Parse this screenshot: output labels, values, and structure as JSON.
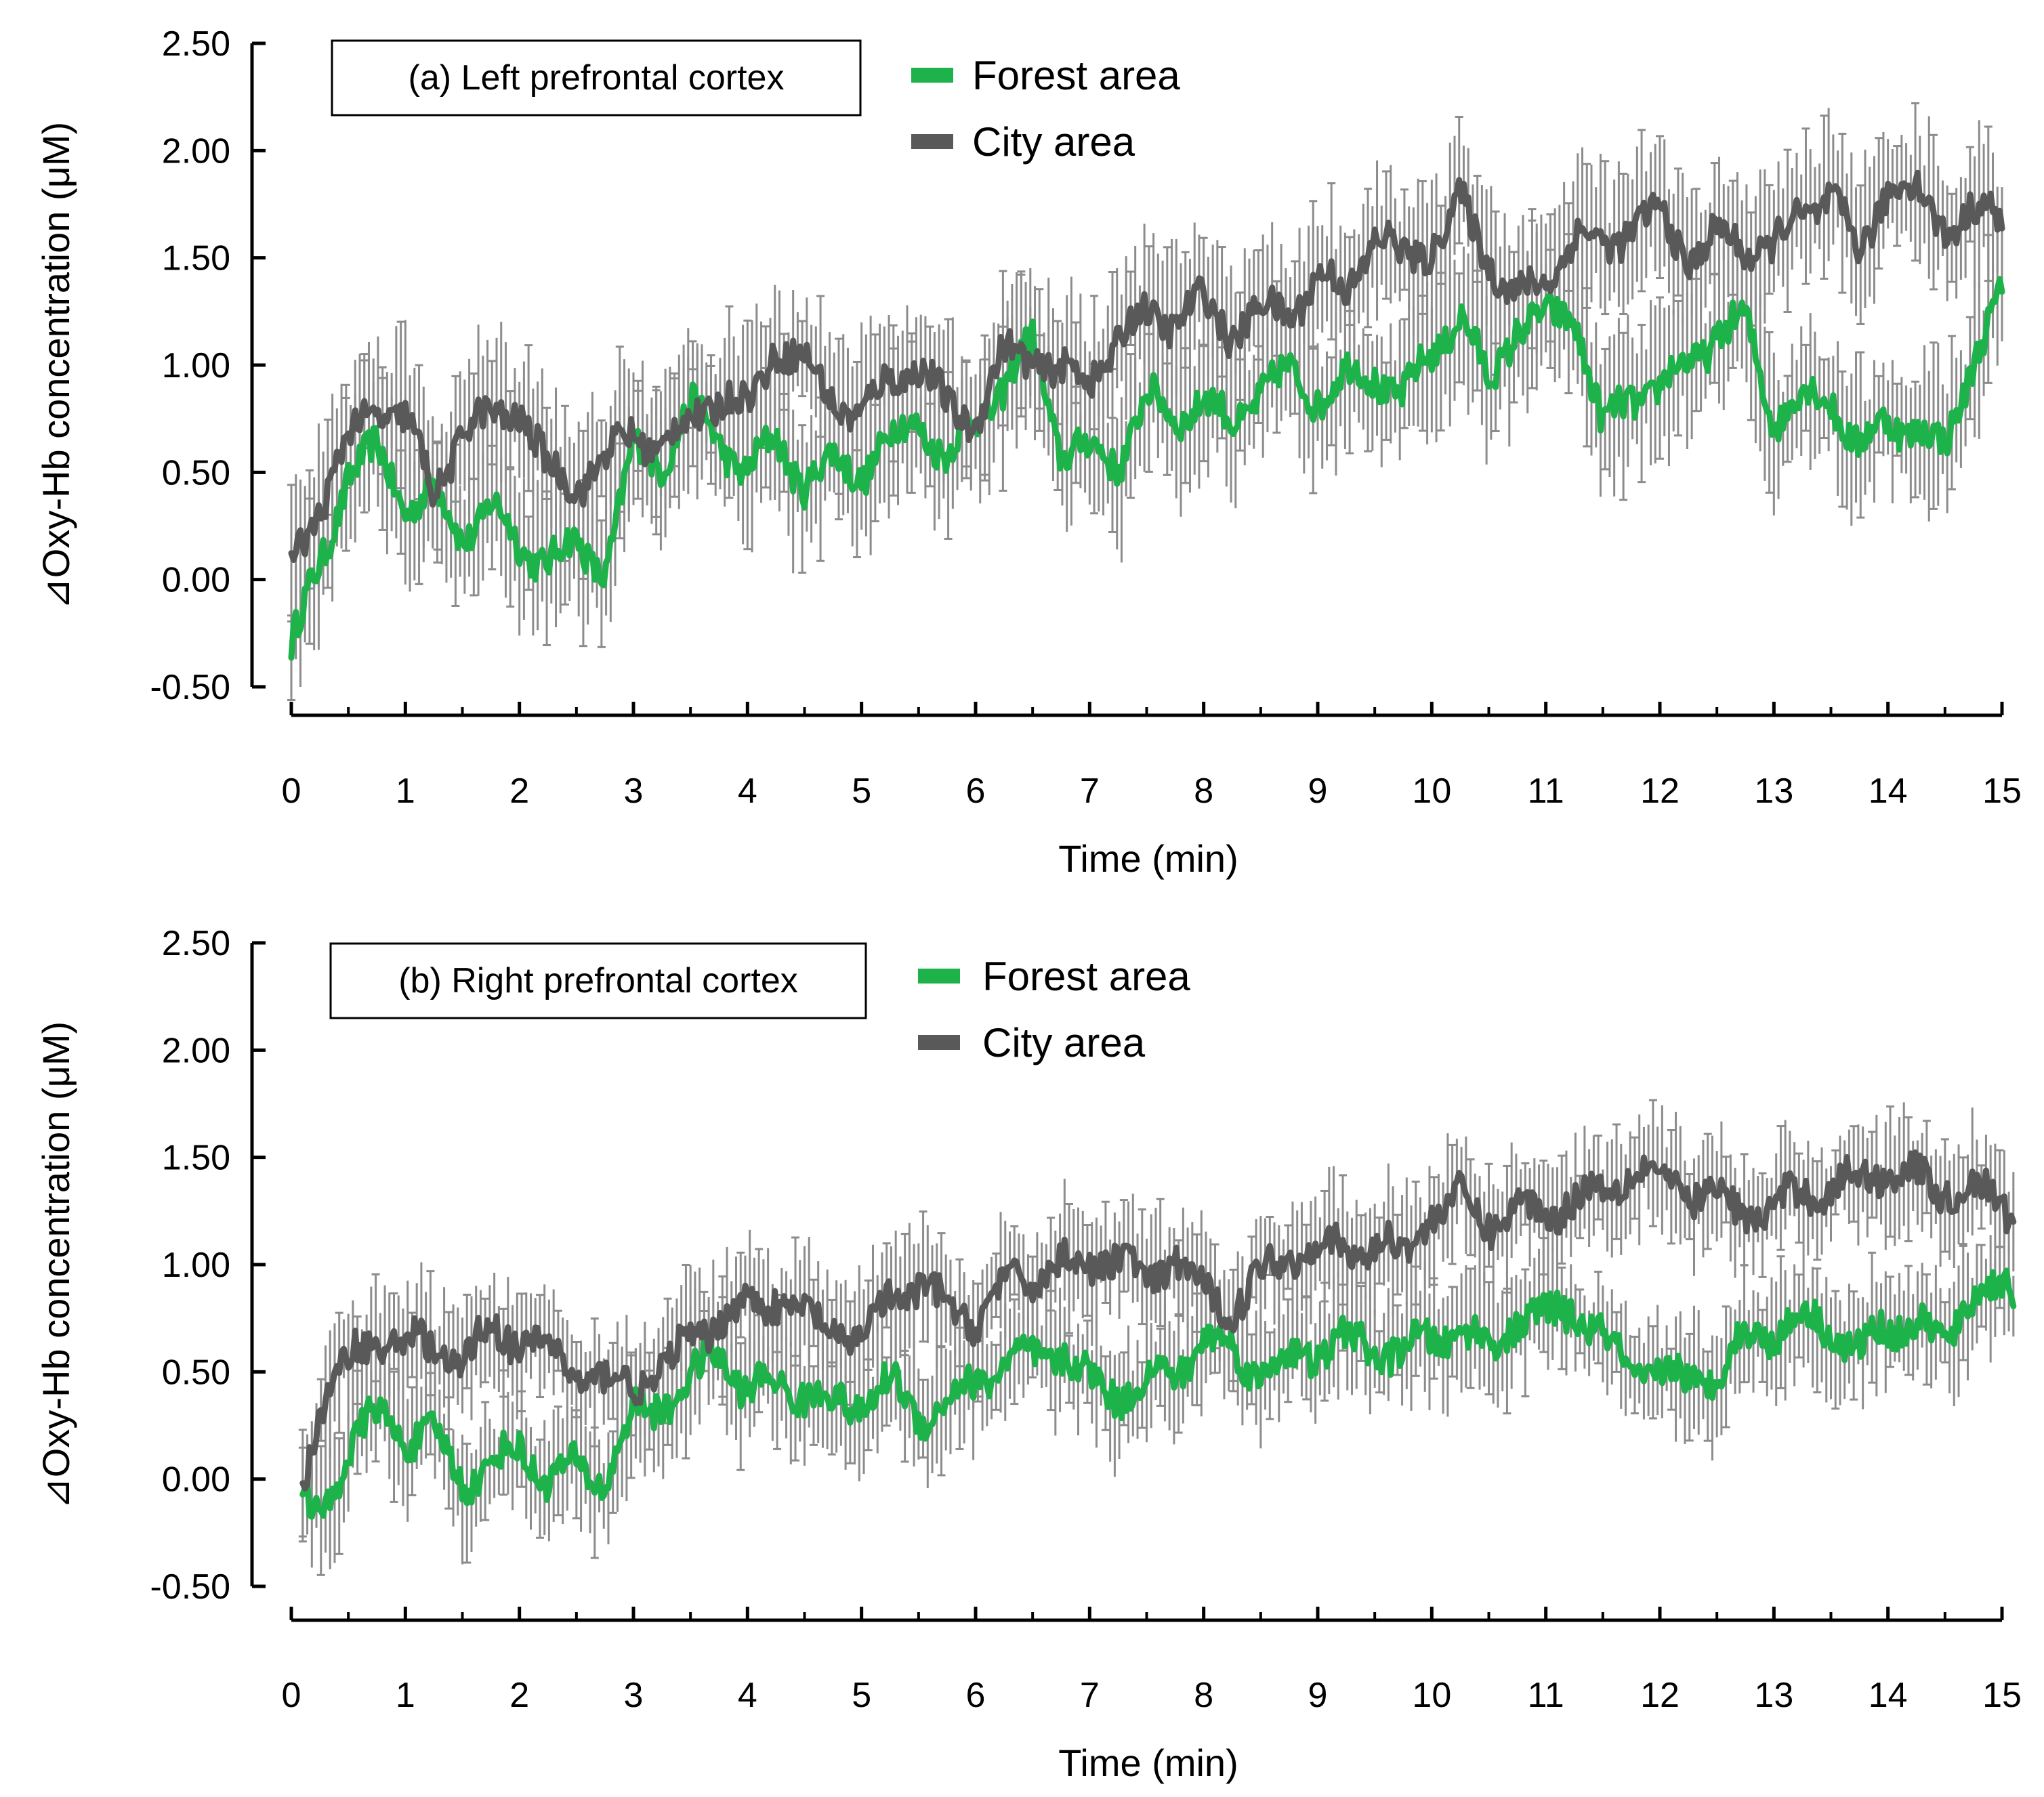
{
  "chart_data": [
    {
      "type": "line",
      "panel_title": "(a) Left prefrontal cortex",
      "xlabel": "Time (min)",
      "ylabel": "⊿Oxy-Hb concentration (μM)",
      "xlim": [
        0,
        15
      ],
      "ylim": [
        -0.5,
        2.5
      ],
      "xticks": [
        "0",
        "1",
        "2",
        "3",
        "4",
        "5",
        "6",
        "7",
        "8",
        "9",
        "10",
        "11",
        "12",
        "13",
        "14",
        "15"
      ],
      "yticks": [
        "-0.50",
        "0.00",
        "0.50",
        "1.00",
        "1.50",
        "2.00",
        "2.50"
      ],
      "legend": [
        "Forest area",
        "City area"
      ],
      "error_bars": "gray, ±SE (approx. 0.3)",
      "series": [
        {
          "name": "Forest area",
          "color": "#1db34a",
          "x": [
            0,
            0.25,
            0.5,
            0.75,
            1,
            1.25,
            1.5,
            1.75,
            2,
            2.25,
            2.5,
            2.75,
            3,
            3.25,
            3.5,
            3.75,
            4,
            4.25,
            4.5,
            4.75,
            5,
            5.25,
            5.5,
            5.75,
            6,
            6.25,
            6.5,
            6.75,
            7,
            7.25,
            7.5,
            7.75,
            8,
            8.25,
            8.5,
            8.75,
            9,
            9.25,
            9.5,
            9.75,
            10,
            10.25,
            10.5,
            10.75,
            11,
            11.25,
            11.5,
            11.75,
            12,
            12.25,
            12.5,
            12.75,
            13,
            13.25,
            13.5,
            13.75,
            14,
            14.25,
            14.5,
            14.75,
            15
          ],
          "values": [
            -0.3,
            0.05,
            0.5,
            0.6,
            0.35,
            0.4,
            0.2,
            0.35,
            0.15,
            0.1,
            0.15,
            0.05,
            0.6,
            0.55,
            0.8,
            0.65,
            0.5,
            0.65,
            0.45,
            0.55,
            0.5,
            0.65,
            0.75,
            0.55,
            0.75,
            0.9,
            1.1,
            0.6,
            0.6,
            0.55,
            0.85,
            0.75,
            0.85,
            0.7,
            0.9,
            0.95,
            0.85,
            0.95,
            0.95,
            0.85,
            1.05,
            1.25,
            0.9,
            1.2,
            1.2,
            1.25,
            0.7,
            0.85,
            0.9,
            1.0,
            1.15,
            1.2,
            0.75,
            0.85,
            0.85,
            0.6,
            0.75,
            0.7,
            0.6,
            1.05,
            1.3
          ]
        },
        {
          "name": "City area",
          "color": "#595959",
          "x": [
            0,
            0.25,
            0.5,
            0.75,
            1,
            1.25,
            1.5,
            1.75,
            2,
            2.25,
            2.5,
            2.75,
            3,
            3.25,
            3.5,
            3.75,
            4,
            4.25,
            4.5,
            4.75,
            5,
            5.25,
            5.5,
            5.75,
            6,
            6.25,
            6.5,
            6.75,
            7,
            7.25,
            7.5,
            7.75,
            8,
            8.25,
            8.5,
            8.75,
            9,
            9.25,
            9.5,
            9.75,
            10,
            10.25,
            10.5,
            10.75,
            11,
            11.25,
            11.5,
            11.75,
            12,
            12.25,
            12.5,
            12.75,
            13,
            13.25,
            13.5,
            13.75,
            14,
            14.25,
            14.5,
            14.75,
            15
          ],
          "values": [
            0.05,
            0.35,
            0.65,
            0.8,
            0.75,
            0.4,
            0.7,
            0.75,
            0.8,
            0.5,
            0.45,
            0.55,
            0.7,
            0.6,
            0.75,
            0.85,
            0.8,
            1.1,
            1.0,
            0.85,
            0.75,
            0.95,
            1.0,
            0.8,
            0.75,
            1.05,
            1.05,
            0.95,
            0.95,
            1.1,
            1.25,
            1.2,
            1.3,
            1.15,
            1.25,
            1.25,
            1.4,
            1.35,
            1.6,
            1.5,
            1.55,
            1.75,
            1.5,
            1.3,
            1.4,
            1.6,
            1.55,
            1.65,
            1.7,
            1.5,
            1.6,
            1.55,
            1.55,
            1.7,
            1.8,
            1.5,
            1.85,
            1.8,
            1.65,
            1.7,
            1.7
          ]
        }
      ]
    },
    {
      "type": "line",
      "panel_title": "(b) Right prefrontal cortex",
      "xlabel": "Time (min)",
      "ylabel": "⊿Oxy-Hb concentration (μM)",
      "xlim": [
        0,
        15
      ],
      "ylim": [
        -0.5,
        2.5
      ],
      "xticks": [
        "0",
        "1",
        "2",
        "3",
        "4",
        "5",
        "6",
        "7",
        "8",
        "9",
        "10",
        "11",
        "12",
        "13",
        "14",
        "15"
      ],
      "yticks": [
        "-0.50",
        "0.00",
        "0.50",
        "1.00",
        "1.50",
        "2.00",
        "2.50"
      ],
      "legend": [
        "Forest area",
        "City area"
      ],
      "error_bars": "gray, ±SE (approx. 0.25)",
      "series": [
        {
          "name": "Forest area",
          "color": "#1db34a",
          "x": [
            0.1,
            0.25,
            0.5,
            0.75,
            1,
            1.25,
            1.5,
            1.75,
            2,
            2.25,
            2.5,
            2.75,
            3,
            3.25,
            3.5,
            3.75,
            4,
            4.25,
            4.5,
            4.75,
            5,
            5.25,
            5.5,
            5.75,
            6,
            6.25,
            6.5,
            6.75,
            7,
            7.25,
            7.5,
            7.75,
            8,
            8.25,
            8.5,
            8.75,
            9,
            9.25,
            9.5,
            9.75,
            10,
            10.25,
            10.5,
            10.75,
            11,
            11.25,
            11.5,
            11.75,
            12,
            12.25,
            12.5,
            12.75,
            13,
            13.25,
            13.5,
            13.75,
            14,
            14.25,
            14.5,
            14.75,
            15.1
          ],
          "values": [
            -0.1,
            -0.2,
            0.15,
            0.3,
            0.2,
            0.2,
            0.0,
            0.05,
            0.15,
            0.0,
            0.05,
            0.0,
            0.3,
            0.35,
            0.45,
            0.6,
            0.4,
            0.45,
            0.4,
            0.35,
            0.35,
            0.45,
            0.3,
            0.35,
            0.45,
            0.55,
            0.55,
            0.6,
            0.45,
            0.4,
            0.45,
            0.5,
            0.65,
            0.6,
            0.5,
            0.55,
            0.6,
            0.65,
            0.6,
            0.6,
            0.65,
            0.7,
            0.6,
            0.75,
            0.75,
            0.8,
            0.65,
            0.5,
            0.5,
            0.45,
            0.5,
            0.65,
            0.7,
            0.75,
            0.7,
            0.6,
            0.7,
            0.75,
            0.6,
            0.9,
            0.85
          ]
        },
        {
          "name": "City area",
          "color": "#595959",
          "x": [
            0.1,
            0.25,
            0.5,
            0.75,
            1,
            1.25,
            1.5,
            1.75,
            2,
            2.25,
            2.5,
            2.75,
            3,
            3.25,
            3.5,
            3.75,
            4,
            4.25,
            4.5,
            4.75,
            5,
            5.25,
            5.5,
            5.75,
            6,
            6.25,
            6.5,
            6.75,
            7,
            7.25,
            7.5,
            7.75,
            8,
            8.25,
            8.5,
            8.75,
            9,
            9.25,
            9.5,
            9.75,
            10,
            10.25,
            10.5,
            10.75,
            11,
            11.25,
            11.5,
            11.75,
            12,
            12.25,
            12.5,
            12.75,
            13,
            13.25,
            13.5,
            13.75,
            14,
            14.25,
            14.5,
            14.75,
            15.1
          ],
          "values": [
            -0.05,
            0.35,
            0.55,
            0.65,
            0.65,
            0.6,
            0.55,
            0.7,
            0.65,
            0.6,
            0.5,
            0.45,
            0.45,
            0.5,
            0.65,
            0.75,
            0.8,
            0.85,
            0.75,
            0.7,
            0.65,
            0.85,
            0.9,
            0.8,
            0.75,
            0.9,
            0.95,
            1.0,
            1.0,
            1.05,
            0.9,
            1.05,
            0.85,
            0.8,
            0.95,
            1.05,
            1.1,
            1.05,
            1.1,
            1.05,
            1.25,
            1.3,
            1.2,
            1.25,
            1.25,
            1.3,
            1.35,
            1.45,
            1.4,
            1.35,
            1.3,
            1.25,
            1.25,
            1.35,
            1.35,
            1.4,
            1.45,
            1.4,
            1.35,
            1.35,
            1.25
          ]
        }
      ]
    }
  ]
}
